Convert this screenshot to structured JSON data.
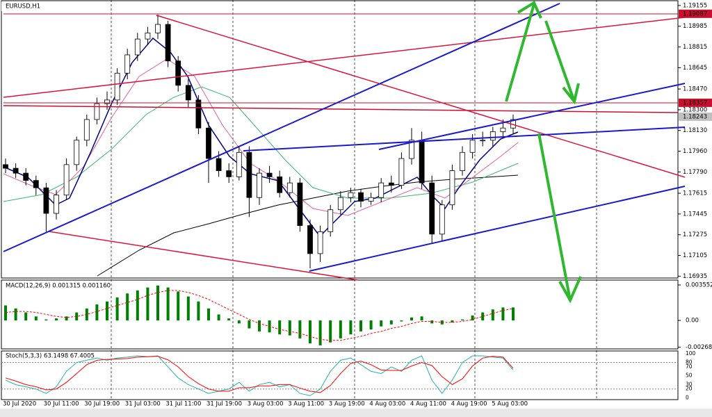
{
  "chart_data": {
    "type": "candlestick",
    "title": "EURUSD,H1",
    "open": [
      1.1785,
      1.1782,
      1.1778,
      1.1772,
      1.1766,
      1.1745,
      1.176,
      1.1785,
      1.1805,
      1.1822,
      1.1835,
      1.1838,
      1.186,
      1.1875,
      1.1888,
      1.1893,
      1.19,
      1.187,
      1.185,
      1.1838,
      1.1815,
      1.179,
      1.178,
      1.1775,
      1.1795,
      1.1758,
      1.1778,
      1.1775,
      1.1762,
      1.177,
      1.1735,
      1.1712,
      1.173,
      1.1748,
      1.1758,
      1.1762,
      1.1755,
      1.1758,
      1.177,
      1.1768,
      1.179,
      1.1805,
      1.177,
      1.1728,
      1.1752,
      1.178,
      1.1795,
      1.1805,
      1.1805,
      1.1812,
      1.1815
    ],
    "high": [
      1.179,
      1.1786,
      1.1782,
      1.1776,
      1.177,
      1.1764,
      1.179,
      1.1808,
      1.1826,
      1.184,
      1.1845,
      1.1864,
      1.188,
      1.1893,
      1.1898,
      1.1908,
      1.1903,
      1.1874,
      1.1855,
      1.1842,
      1.182,
      1.1796,
      1.1786,
      1.18,
      1.18,
      1.1782,
      1.1784,
      1.178,
      1.1775,
      1.1774,
      1.174,
      1.1735,
      1.1752,
      1.1763,
      1.1766,
      1.1765,
      1.1762,
      1.1774,
      1.1776,
      1.1795,
      1.1815,
      1.1812,
      1.1776,
      1.1756,
      1.1785,
      1.18,
      1.181,
      1.1812,
      1.1816,
      1.1822,
      1.1826
    ],
    "low": [
      1.1778,
      1.1774,
      1.1768,
      1.176,
      1.173,
      1.174,
      1.1756,
      1.178,
      1.18,
      1.1818,
      1.183,
      1.1834,
      1.1855,
      1.187,
      1.1883,
      1.1888,
      1.1865,
      1.1845,
      1.1832,
      1.181,
      1.177,
      1.1775,
      1.177,
      1.1772,
      1.1742,
      1.1752,
      1.177,
      1.1758,
      1.1758,
      1.173,
      1.17,
      1.1705,
      1.1726,
      1.1744,
      1.1754,
      1.175,
      1.1752,
      1.1754,
      1.1762,
      1.1765,
      1.1785,
      1.1765,
      1.172,
      1.1722,
      1.1748,
      1.1776,
      1.179,
      1.18,
      1.18,
      1.1808,
      1.181
    ],
    "close": [
      1.1782,
      1.1778,
      1.1772,
      1.1766,
      1.1745,
      1.176,
      1.1785,
      1.1805,
      1.1822,
      1.1835,
      1.1838,
      1.186,
      1.1875,
      1.1888,
      1.1893,
      1.19,
      1.187,
      1.185,
      1.1838,
      1.1815,
      1.179,
      1.178,
      1.1775,
      1.1795,
      1.1758,
      1.1778,
      1.1775,
      1.1762,
      1.177,
      1.1735,
      1.1712,
      1.173,
      1.1748,
      1.1758,
      1.1762,
      1.1755,
      1.1758,
      1.177,
      1.1768,
      1.179,
      1.1805,
      1.177,
      1.1728,
      1.1752,
      1.178,
      1.1795,
      1.1805,
      1.1805,
      1.1812,
      1.1815,
      1.1822
    ],
    "up_color": "#ffffff",
    "down_color": "#000000",
    "ylim": [
      1.1692,
      1.192
    ],
    "yticks": [
      1.19155,
      1.18985,
      1.18815,
      1.18645,
      {
        "value": 1.1847,
        "label": "1.18470"
      },
      {
        "value": 1.183,
        "label": "1.18300"
      },
      {
        "value": 1.1813,
        "label": "1.18130"
      },
      {
        "value": 1.1796,
        "label": "1.17960"
      },
      {
        "value": 1.1779,
        "label": "1.17790"
      },
      1.17615,
      1.17445,
      1.17275,
      1.17105,
      1.16935
    ],
    "price_markers": [
      {
        "value": 1.19087,
        "color": "#c8102e"
      },
      {
        "value": 1.18357,
        "color": "#c8102e"
      },
      {
        "value": 1.18243,
        "color": "#c0c0c0"
      }
    ],
    "xtick_labels": [
      "30 Jul 2020",
      "30 Jul 11:00",
      "30 Jul 19:00",
      "31 Jul 03:00",
      "31 Jul 11:00",
      "31 Jul 19:00",
      "3 Aug 03:00",
      "3 Aug 11:00",
      "3 Aug 19:00",
      "4 Aug 03:00",
      "4 Aug 11:00",
      "4 Aug 19:00",
      "5 Aug 03:00"
    ],
    "macd": {
      "label": "MACD(12,26,9) 0.001315 0.001160",
      "histogram_color": "#008000",
      "signal_color": "#ff0000",
      "histogram": [
        0.0015,
        0.0012,
        0.0008,
        0.0004,
        0.0001,
        0.0002,
        0.0004,
        0.0008,
        0.0012,
        0.0016,
        0.0019,
        0.0023,
        0.0027,
        0.003,
        0.0033,
        0.0035,
        0.0033,
        0.0029,
        0.0024,
        0.0019,
        0.0012,
        0.0006,
        0.0002,
        -0.0003,
        -0.0008,
        -0.0011,
        -0.0012,
        -0.0014,
        -0.0015,
        -0.0018,
        -0.0023,
        -0.0025,
        -0.0022,
        -0.0018,
        -0.0014,
        -0.0011,
        -0.0009,
        -0.0006,
        -0.0004,
        -0.0001,
        0.0003,
        0.0004,
        -0.0003,
        -0.0004,
        -0.0002,
        0.0001,
        0.0005,
        0.0008,
        0.0011,
        0.0013,
        0.0013
      ],
      "signal": [
        0.0008,
        0.0009,
        0.0009,
        0.0008,
        0.0006,
        0.0004,
        0.0003,
        0.0004,
        0.0006,
        0.0009,
        0.0012,
        0.0015,
        0.0018,
        0.0021,
        0.0025,
        0.0028,
        0.003,
        0.003,
        0.0028,
        0.0025,
        0.0021,
        0.0016,
        0.0011,
        0.0006,
        0.0001,
        -0.0003,
        -0.0006,
        -0.0009,
        -0.0011,
        -0.0013,
        -0.0016,
        -0.0019,
        -0.002,
        -0.002,
        -0.0018,
        -0.0016,
        -0.0013,
        -0.0011,
        -0.0008,
        -0.0006,
        -0.0003,
        -0.0001,
        -0.0001,
        -0.0002,
        -0.0002,
        -0.0001,
        0.0001,
        0.0004,
        0.0007,
        0.001,
        0.0012
      ],
      "ylim": [
        -0.00285,
        0.00404
      ],
      "yticks": [
        0.003552,
        {
          "value": 0,
          "label": "0.00"
        },
        -0.00268
      ]
    },
    "stoch": {
      "label": "Stoch(5,3,3) 63.1498 67.4005",
      "main_color": "#20b2aa",
      "signal_color": "#ff0000",
      "main": [
        40,
        30,
        25,
        20,
        10,
        25,
        60,
        80,
        85,
        90,
        85,
        90,
        92,
        95,
        93,
        95,
        70,
        45,
        30,
        20,
        10,
        15,
        20,
        35,
        15,
        30,
        35,
        25,
        30,
        10,
        5,
        20,
        60,
        85,
        90,
        75,
        60,
        55,
        70,
        60,
        85,
        95,
        40,
        10,
        40,
        80,
        95,
        95,
        92,
        90,
        63
      ],
      "signal": [
        45,
        38,
        30,
        25,
        18,
        20,
        35,
        55,
        75,
        85,
        87,
        88,
        89,
        92,
        93,
        94,
        86,
        70,
        48,
        32,
        20,
        15,
        15,
        23,
        23,
        27,
        27,
        30,
        30,
        22,
        15,
        12,
        28,
        55,
        78,
        83,
        75,
        63,
        62,
        62,
        72,
        80,
        73,
        48,
        30,
        43,
        72,
        90,
        94,
        92,
        67
      ],
      "ylim": [
        -4,
        106
      ],
      "yticks": [
        100,
        80,
        70,
        50,
        30,
        20,
        0
      ],
      "levels": [
        80,
        20
      ]
    }
  }
}
